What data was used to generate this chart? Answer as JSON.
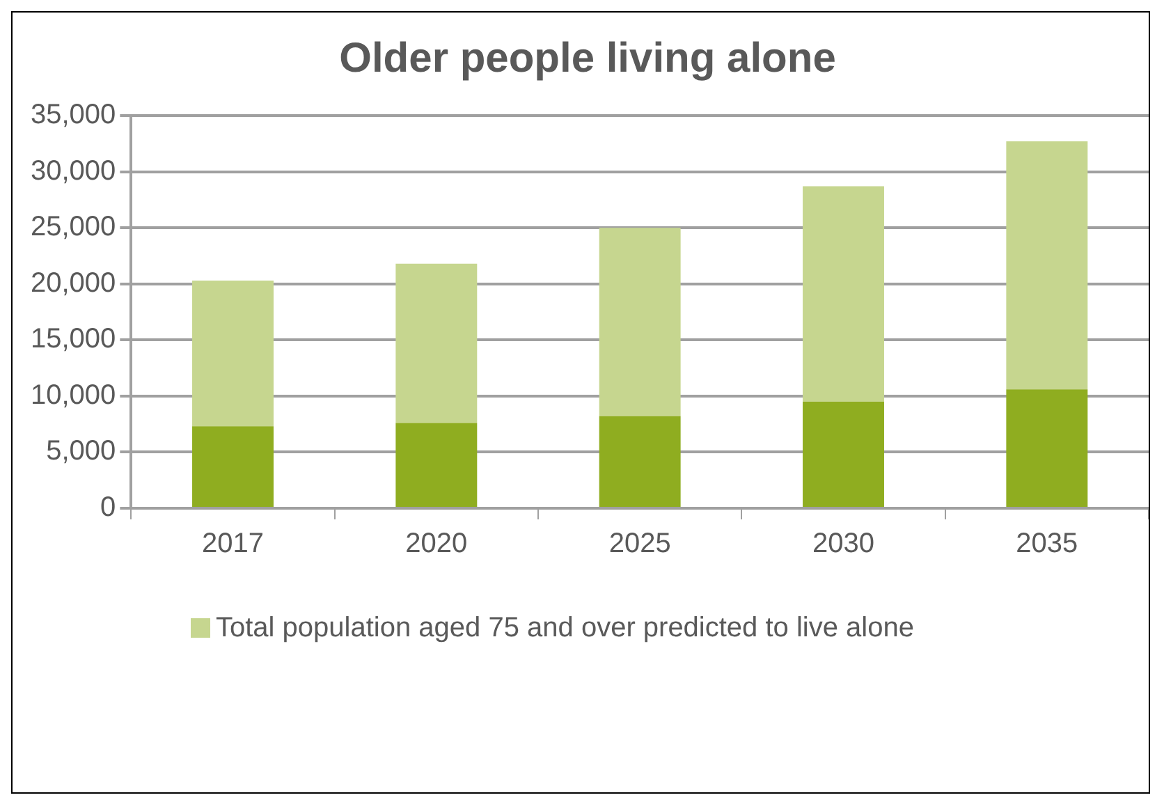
{
  "chart_data": {
    "type": "bar",
    "title": "Older people living alone",
    "categories": [
      "2017",
      "2020",
      "2025",
      "2030",
      "2035"
    ],
    "stacked": true,
    "series": [
      {
        "color": "#8fad20",
        "values": [
          7300,
          7600,
          8200,
          9500,
          10600
        ]
      },
      {
        "name": "Total population aged 75 and over predicted to live alone",
        "color": "#c6d68f",
        "values": [
          13000,
          14200,
          16800,
          19200,
          22100
        ]
      }
    ],
    "ylim": [
      0,
      35000
    ],
    "yticks": [
      {
        "value": 0,
        "label": "0"
      },
      {
        "value": 5000,
        "label": "5,000"
      },
      {
        "value": 10000,
        "label": "10,000"
      },
      {
        "value": 15000,
        "label": "15,000"
      },
      {
        "value": 20000,
        "label": "20,000"
      },
      {
        "value": 25000,
        "label": "25,000"
      },
      {
        "value": 30000,
        "label": "30,000"
      },
      {
        "value": 35000,
        "label": "35,000"
      }
    ],
    "grid": "y",
    "legend": "bottom"
  }
}
